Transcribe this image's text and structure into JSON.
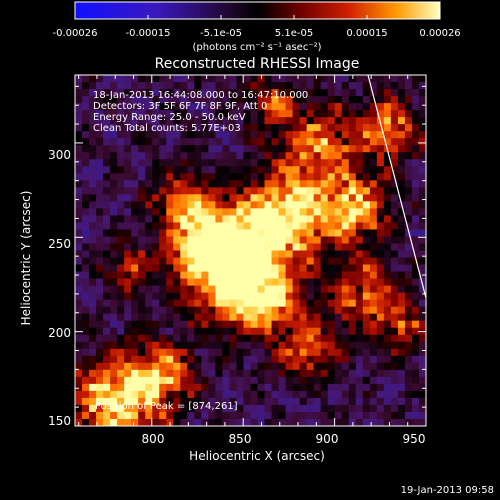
{
  "colorbar": {
    "tick_labels": [
      "-0.00026",
      "-0.00015",
      "-5.1e-05",
      "5.1e-05",
      "0.00015",
      "0.00026"
    ],
    "unit_label": "(photons cm⁻² s⁻¹ asec⁻²)",
    "colors": [
      "#1010ff",
      "#4a1090",
      "#000000",
      "#6a0000",
      "#d02000",
      "#ff9a00",
      "#ffffa0"
    ]
  },
  "plot": {
    "title": "Reconstructed RHESSI Image",
    "info_lines": [
      "18-Jan-2013 16:44:08.000 to 16:47:10.000",
      "Detectors: 3F 5F 6F 7F 8F 9F, Att 0",
      "Energy Range: 25.0 - 50.0 keV",
      "Clean     Total counts: 5.77E+03"
    ],
    "peak_label": "Position of Peak = [874,261]",
    "x_axis": {
      "label": "Heliocentric X (arcsec)",
      "ticks": [
        "800",
        "850",
        "900",
        "950"
      ],
      "range": [
        758,
        950
      ]
    },
    "y_axis": {
      "label": "Heliocentric Y (arcsec)",
      "ticks": [
        "150",
        "200",
        "250",
        "300"
      ],
      "range": [
        150,
        336
      ]
    }
  },
  "timestamp": "19-Jan-2013 09:58"
}
